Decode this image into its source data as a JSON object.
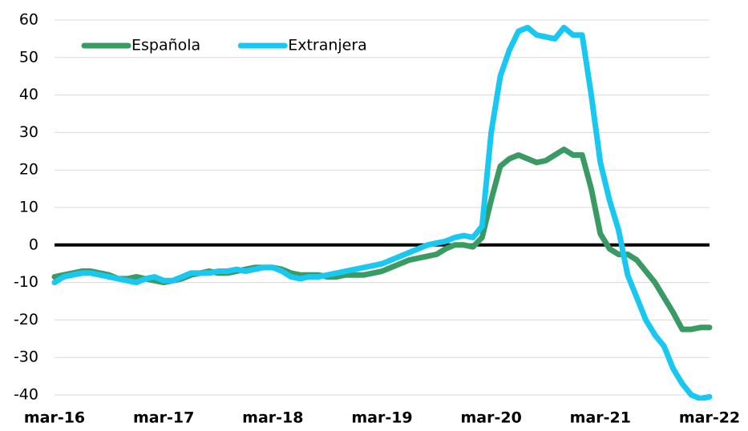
{
  "chart_data": {
    "type": "line",
    "categories": [
      "mar-16",
      null,
      null,
      null,
      null,
      null,
      null,
      null,
      null,
      null,
      null,
      null,
      "mar-17",
      null,
      null,
      null,
      null,
      null,
      null,
      null,
      null,
      null,
      null,
      null,
      "mar-18",
      null,
      null,
      null,
      null,
      null,
      null,
      null,
      null,
      null,
      null,
      null,
      "mar-19",
      null,
      null,
      null,
      null,
      null,
      null,
      null,
      null,
      null,
      null,
      null,
      "mar-20",
      null,
      null,
      null,
      null,
      null,
      null,
      null,
      null,
      null,
      null,
      null,
      "mar-21",
      null,
      null,
      null,
      null,
      null,
      null,
      null,
      null,
      null,
      null,
      null,
      "mar-22"
    ],
    "series": [
      {
        "name": "Española",
        "color": "#3a9a63",
        "values": [
          -8.5,
          -8,
          -7.5,
          -7,
          -7,
          -7.5,
          -8,
          -9,
          -9,
          -8.5,
          -9,
          -9.5,
          -10,
          -9.5,
          -9,
          -8,
          -7.5,
          -7,
          -7.5,
          -7.5,
          -7,
          -6.5,
          -6,
          -6,
          -6,
          -6.5,
          -7.5,
          -8,
          -8,
          -8,
          -8.5,
          -8.5,
          -8,
          -8,
          -8,
          -7.5,
          -7,
          -6,
          -5,
          -4,
          -3.5,
          -3,
          -2.5,
          -1,
          0,
          0,
          -0.5,
          2,
          12,
          21,
          23,
          24,
          23,
          22,
          22.5,
          24,
          25.5,
          24,
          24,
          15,
          3,
          -1,
          -2.5,
          -2.5,
          -4,
          -7,
          -10,
          -14,
          -18,
          -22.5,
          -22.5,
          -22,
          -22
        ]
      },
      {
        "name": "Extranjera",
        "color": "#18c8f0",
        "values": [
          -10,
          -8.5,
          -8,
          -7.5,
          -7.5,
          -8,
          -8.5,
          -9,
          -9.5,
          -10,
          -9,
          -8.5,
          -9.5,
          -9.5,
          -8.5,
          -7.5,
          -7.5,
          -7.5,
          -7,
          -7,
          -6.5,
          -7,
          -6.5,
          -6,
          -6,
          -7,
          -8.5,
          -9,
          -8.5,
          -8.5,
          -8,
          -7.5,
          -7,
          -6.5,
          -6,
          -5.5,
          -5,
          -4,
          -3,
          -2,
          -1,
          0,
          0.5,
          1,
          2,
          2.5,
          2,
          5,
          30,
          45,
          52,
          57,
          58,
          56,
          55.5,
          55,
          58,
          56,
          56,
          40,
          22,
          12,
          4,
          -8,
          -14,
          -20,
          -24,
          -27,
          -33,
          -37,
          -40,
          -41,
          -40.5
        ]
      }
    ],
    "ylim": [
      -40,
      60
    ],
    "yticks": [
      -40,
      -30,
      -20,
      -10,
      0,
      10,
      20,
      30,
      40,
      50,
      60
    ],
    "grid": true,
    "legend": "top-left"
  }
}
